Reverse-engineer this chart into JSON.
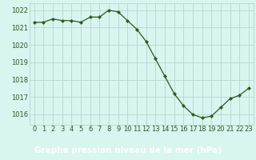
{
  "x": [
    0,
    1,
    2,
    3,
    4,
    5,
    6,
    7,
    8,
    9,
    10,
    11,
    12,
    13,
    14,
    15,
    16,
    17,
    18,
    19,
    20,
    21,
    22,
    23
  ],
  "y": [
    1021.3,
    1021.3,
    1021.5,
    1021.4,
    1021.4,
    1021.3,
    1021.6,
    1021.6,
    1022.0,
    1021.9,
    1021.4,
    1020.9,
    1020.2,
    1019.2,
    1018.2,
    1017.2,
    1016.5,
    1016.0,
    1015.8,
    1015.9,
    1016.4,
    1016.9,
    1017.1,
    1017.5
  ],
  "line_color": "#2d5a1b",
  "marker": "D",
  "marker_size": 2.2,
  "bg_color": "#d8f5f0",
  "grid_color": "#b8d4cc",
  "xlabel": "Graphe pression niveau de la mer (hPa)",
  "xlabel_color": "#1a3a0a",
  "xlabel_bg": "#7ab87a",
  "xlabel_fontsize": 7.5,
  "tick_color": "#2d5a1b",
  "tick_fontsize": 6.0,
  "ylim": [
    1015.4,
    1022.4
  ],
  "yticks": [
    1016,
    1017,
    1018,
    1019,
    1020,
    1021,
    1022
  ],
  "xlim": [
    -0.5,
    23.5
  ],
  "xticks": [
    0,
    1,
    2,
    3,
    4,
    5,
    6,
    7,
    8,
    9,
    10,
    11,
    12,
    13,
    14,
    15,
    16,
    17,
    18,
    19,
    20,
    21,
    22,
    23
  ]
}
